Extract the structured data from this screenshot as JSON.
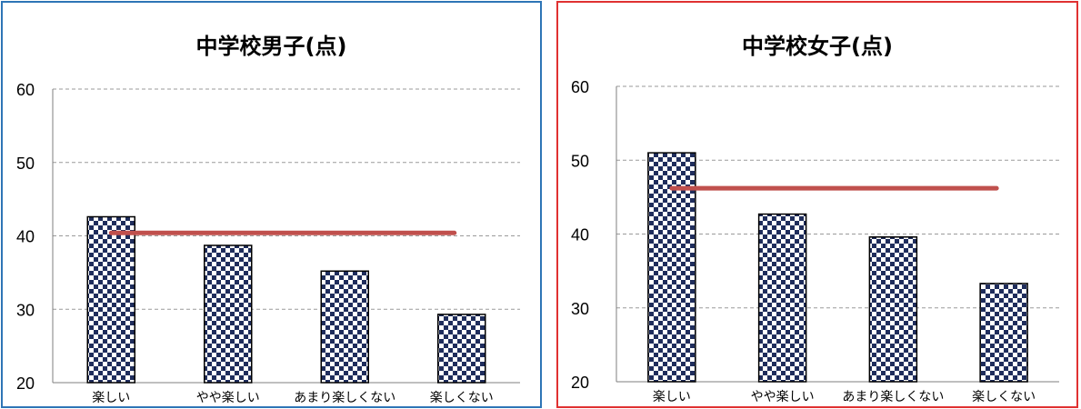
{
  "pattern_colors": {
    "dark": "#1f2d5c",
    "light": "#ffffff"
  },
  "line_color": "#c0504d",
  "chart_data": [
    {
      "type": "bar",
      "title": "中学校男子(点)",
      "categories": [
        "楽しい",
        "やや楽しい",
        "あまり楽しくない",
        "楽しくない"
      ],
      "values": [
        42.6,
        38.7,
        35.2,
        29.3
      ],
      "reference_line": 40.4,
      "ylim": [
        20,
        60
      ],
      "yticks": [
        "20",
        "30",
        "40",
        "50",
        "60"
      ],
      "grid": true
    },
    {
      "type": "bar",
      "title": "中学校女子(点)",
      "categories": [
        "楽しい",
        "やや楽しい",
        "あまり楽しくない",
        "楽しくない"
      ],
      "values": [
        51.0,
        42.7,
        39.6,
        33.3
      ],
      "reference_line": 46.2,
      "ylim": [
        20,
        60
      ],
      "yticks": [
        "20",
        "30",
        "40",
        "50",
        "60"
      ],
      "grid": true
    }
  ]
}
